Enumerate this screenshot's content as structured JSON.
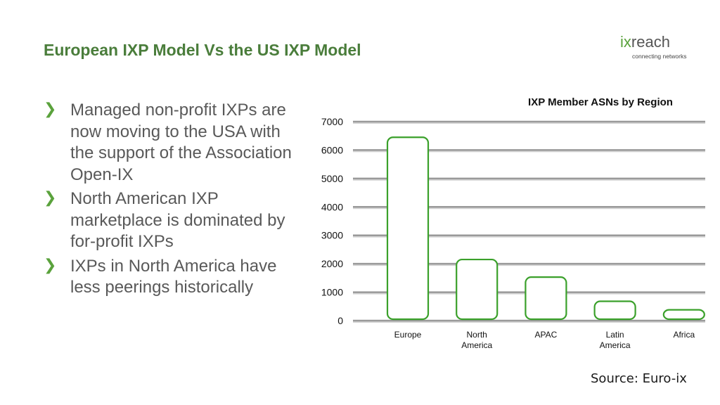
{
  "slide": {
    "title": "European IXP Model Vs the US IXP Model",
    "source": "Source: Euro-ix"
  },
  "logo": {
    "word_prefix": "ix",
    "word_suffix": "reach",
    "tagline": "connecting networks",
    "accent_color": "#5aa23c"
  },
  "bullets": [
    {
      "icon": "chevron-right-icon",
      "text": "Managed non-profit IXPs are now moving to the USA with the support of the Association Open-IX"
    },
    {
      "icon": "chevron-right-icon",
      "text": "North American IXP marketplace is dominated by for-profit IXPs"
    },
    {
      "icon": "chevron-right-icon",
      "text": "IXPs in North America have less peerings historically"
    }
  ],
  "colors": {
    "title": "#4a7d3b",
    "bar_stroke": "#3aa02a",
    "gridline": "#9a9a9a"
  },
  "chart_data": {
    "type": "bar",
    "title": "IXP Member ASNs by Region",
    "categories": [
      "Europe",
      "North America",
      "APAC",
      "Latin America",
      "Africa"
    ],
    "category_lines": [
      [
        "Europe"
      ],
      [
        "North",
        "America"
      ],
      [
        "APAC"
      ],
      [
        "Latin",
        "America"
      ],
      [
        "Africa"
      ]
    ],
    "values": [
      6450,
      2150,
      1530,
      680,
      380
    ],
    "xlabel": "",
    "ylabel": "",
    "ylim": [
      0,
      7000
    ],
    "yticks": [
      0,
      1000,
      2000,
      3000,
      4000,
      5000,
      6000,
      7000
    ],
    "grid": true,
    "legend": "none"
  }
}
